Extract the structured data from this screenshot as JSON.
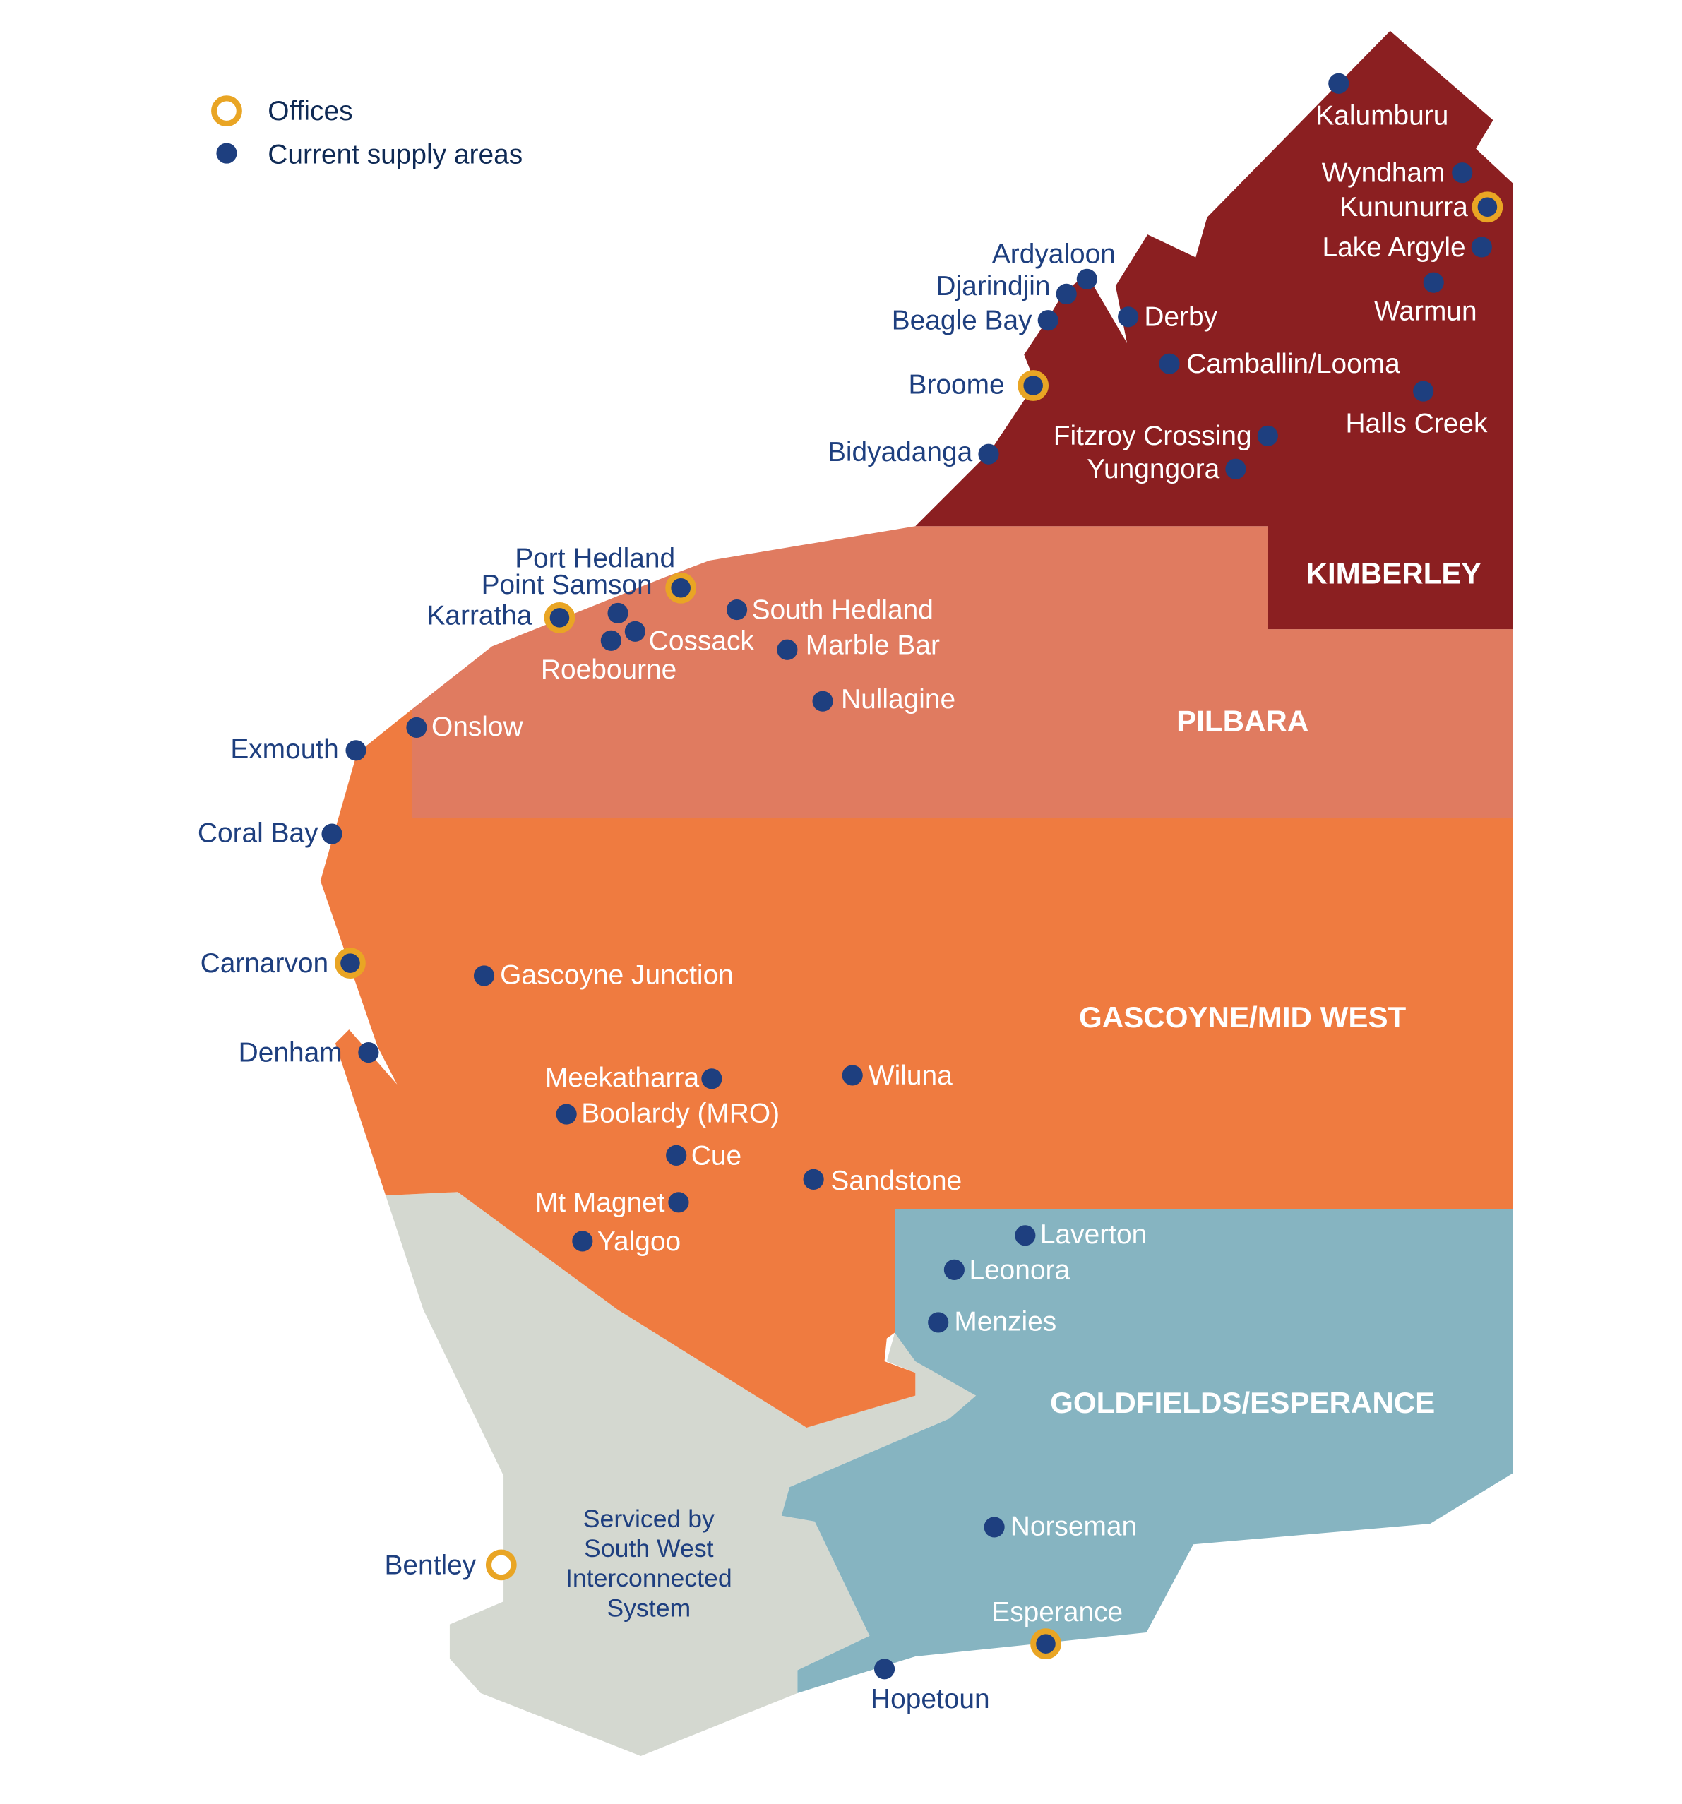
{
  "legend": {
    "offices_label": "Offices",
    "supply_label": "Current supply areas"
  },
  "colors": {
    "kimberley": "#8B1F21",
    "pilbara": "#E07B60",
    "gascoyne_mid_west": "#EF7B40",
    "goldfields_esperance": "#86B4C1",
    "south_west": "#D4D8D0",
    "office_ring": "#E9A524",
    "supply_dot": "#1E3F7F",
    "dark_text": "#1E3F7F",
    "light_text": "#FFFFFF"
  },
  "regions": {
    "kimberley": "KIMBERLEY",
    "pilbara": "PILBARA",
    "gascoyne_mid_west": "GASCOYNE/MID WEST",
    "goldfields_esperance": "GOLDFIELDS/ESPERANCE"
  },
  "south_west_note": [
    "Serviced by",
    "South West",
    "Interconnected",
    "System"
  ],
  "places": [
    {
      "name": "Kalumburu",
      "type": "supply"
    },
    {
      "name": "Wyndham",
      "type": "supply"
    },
    {
      "name": "Kununurra",
      "type": "office"
    },
    {
      "name": "Lake Argyle",
      "type": "supply"
    },
    {
      "name": "Warmun",
      "type": "supply"
    },
    {
      "name": "Ardyaloon",
      "type": "supply"
    },
    {
      "name": "Djarindjin",
      "type": "supply"
    },
    {
      "name": "Beagle Bay",
      "type": "supply"
    },
    {
      "name": "Derby",
      "type": "supply"
    },
    {
      "name": "Camballin/Looma",
      "type": "supply"
    },
    {
      "name": "Broome",
      "type": "office"
    },
    {
      "name": "Halls Creek",
      "type": "supply"
    },
    {
      "name": "Fitzroy Crossing",
      "type": "supply"
    },
    {
      "name": "Yungngora",
      "type": "supply"
    },
    {
      "name": "Bidyadanga",
      "type": "supply"
    },
    {
      "name": "Port Hedland",
      "type": "office"
    },
    {
      "name": "Point Samson",
      "type": "supply"
    },
    {
      "name": "Karratha",
      "type": "office"
    },
    {
      "name": "Cossack",
      "type": "supply"
    },
    {
      "name": "Roebourne",
      "type": "supply"
    },
    {
      "name": "South Hedland",
      "type": "supply"
    },
    {
      "name": "Marble Bar",
      "type": "supply"
    },
    {
      "name": "Nullagine",
      "type": "supply"
    },
    {
      "name": "Onslow",
      "type": "supply"
    },
    {
      "name": "Exmouth",
      "type": "supply"
    },
    {
      "name": "Coral Bay",
      "type": "supply"
    },
    {
      "name": "Carnarvon",
      "type": "office"
    },
    {
      "name": "Gascoyne Junction",
      "type": "supply"
    },
    {
      "name": "Denham",
      "type": "supply"
    },
    {
      "name": "Meekatharra",
      "type": "supply"
    },
    {
      "name": "Wiluna",
      "type": "supply"
    },
    {
      "name": "Boolardy (MRO)",
      "type": "supply"
    },
    {
      "name": "Cue",
      "type": "supply"
    },
    {
      "name": "Sandstone",
      "type": "supply"
    },
    {
      "name": "Mt Magnet",
      "type": "supply"
    },
    {
      "name": "Yalgoo",
      "type": "supply"
    },
    {
      "name": "Laverton",
      "type": "supply"
    },
    {
      "name": "Leonora",
      "type": "supply"
    },
    {
      "name": "Menzies",
      "type": "supply"
    },
    {
      "name": "Norseman",
      "type": "supply"
    },
    {
      "name": "Bentley",
      "type": "office-hollow"
    },
    {
      "name": "Esperance",
      "type": "office"
    },
    {
      "name": "Hopetoun",
      "type": "supply"
    }
  ]
}
